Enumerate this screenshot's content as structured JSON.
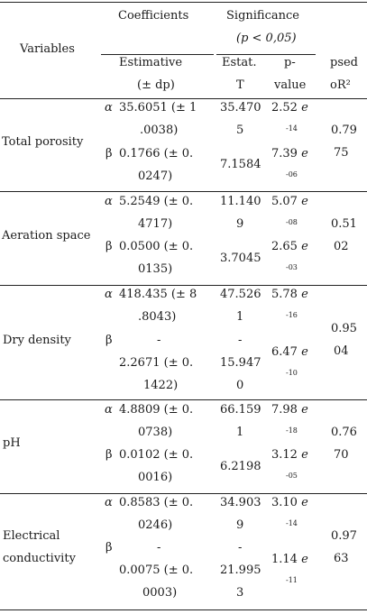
{
  "header": {
    "variables": "Variables",
    "coefficients": "Coefficients",
    "significance": "Significance",
    "significance_note": "(p < 0,05)",
    "estimative_1": "Estimative",
    "estimative_2": "(± dp)",
    "estat_1": "Estat.",
    "estat_2": "T",
    "pvalue_1": "p-",
    "pvalue_2": "value",
    "pseudo_1": "psed",
    "pseudo_2": "oR²"
  },
  "rows": [
    {
      "variable": "Total porosity",
      "alpha_sym": "α",
      "beta_sym": "β",
      "alpha_est_1": "35.6051 (± 1",
      "alpha_est_2": ".0038)",
      "beta_est_1": "0.1766 (± 0.",
      "beta_est_2": "0247)",
      "alpha_t_1": "35.470",
      "alpha_t_2": "5",
      "beta_t": "7.1584",
      "alpha_p_mant": "2.52",
      "alpha_p_exp": "-14",
      "beta_p_mant": "7.39",
      "beta_p_exp": "-06",
      "r2_1": "0.79",
      "r2_2": "75"
    },
    {
      "variable": "Aeration space",
      "alpha_sym": "α",
      "beta_sym": "β",
      "alpha_est_1": "5.2549 (± 0.",
      "alpha_est_2": "4717)",
      "beta_est_1": "0.0500 (± 0.",
      "beta_est_2": "0135)",
      "alpha_t_1": "11.140",
      "alpha_t_2": "9",
      "beta_t": "3.7045",
      "alpha_p_mant": "5.07",
      "alpha_p_exp": "-08",
      "beta_p_mant": "2.65",
      "beta_p_exp": "-03",
      "r2_1": "0.51",
      "r2_2": "02"
    },
    {
      "variable": "Dry density",
      "alpha_sym": "α",
      "beta_sym": "β",
      "alpha_est_1": "418.435 (± 8",
      "alpha_est_2": ".8043)",
      "beta_est_1": "-",
      "beta_est_2": "2.2671 (± 0.",
      "beta_est_3": "1422)",
      "alpha_t_1": "47.526",
      "alpha_t_2": "1",
      "beta_t_1": "-",
      "beta_t_2": "15.947",
      "beta_t_3": "0",
      "alpha_p_mant": "5.78",
      "alpha_p_exp": "-16",
      "beta_p_mant": "6.47",
      "beta_p_exp": "-10",
      "r2_1": "0.95",
      "r2_2": "04"
    },
    {
      "variable": "pH",
      "alpha_sym": "α",
      "beta_sym": "β",
      "alpha_est_1": "4.8809 (± 0.",
      "alpha_est_2": "0738)",
      "beta_est_1": "0.0102 (± 0.",
      "beta_est_2": "0016)",
      "alpha_t_1": "66.159",
      "alpha_t_2": "1",
      "beta_t": "6.2198",
      "alpha_p_mant": "7.98",
      "alpha_p_exp": "-18",
      "beta_p_mant": "3.12",
      "beta_p_exp": "-05",
      "r2_1": "0.76",
      "r2_2": "70"
    },
    {
      "variable_1": "Electrical",
      "variable_2": "conductivity",
      "alpha_sym": "α",
      "beta_sym": "β",
      "alpha_est_1": "0.8583 (± 0.",
      "alpha_est_2": "0246)",
      "beta_est_1": "-",
      "beta_est_2": "0.0075 (± 0.",
      "beta_est_3": "0003)",
      "alpha_t_1": "34.903",
      "alpha_t_2": "9",
      "beta_t_1": "-",
      "beta_t_2": "21.995",
      "beta_t_3": "3",
      "alpha_p_mant": "3.10",
      "alpha_p_exp": "-14",
      "beta_p_mant": "1.14",
      "beta_p_exp": "-11",
      "r2_1": "0.97",
      "r2_2": "63"
    }
  ],
  "e_symbol": "e"
}
